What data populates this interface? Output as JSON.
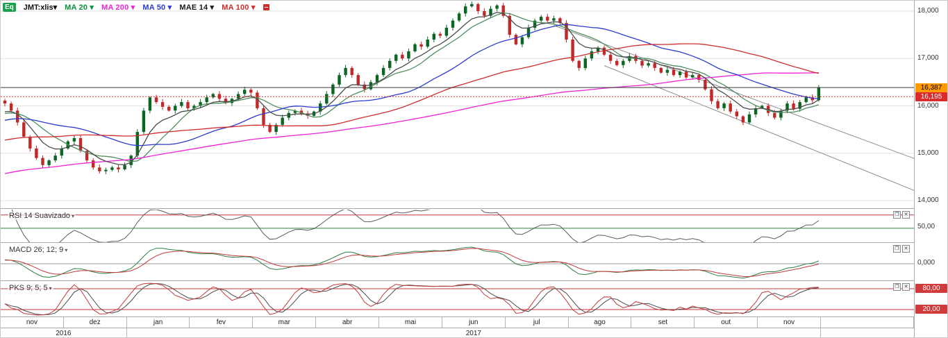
{
  "ui": {
    "caret": "▾",
    "restore_icon": "❐",
    "close_icon": "✕"
  },
  "toolbar": {
    "instrument_badge": "Eq",
    "symbol": "JMT:xlis"
  },
  "price_axis": {
    "ticks": [
      {
        "label": "18,000",
        "value": 18000
      },
      {
        "label": "17,000",
        "value": 17000
      },
      {
        "label": "16,000",
        "value": 16000
      },
      {
        "label": "15,000",
        "value": 15000
      },
      {
        "label": "14,000",
        "value": 14000
      }
    ]
  },
  "panels": {
    "rsi": {
      "title": "RSI 14 Suavizado",
      "period": 14,
      "range": [
        28,
        78
      ],
      "line_color": "#5a5a5a",
      "ref_lines": [
        {
          "value": 70,
          "color": "#c23a3a"
        },
        {
          "value": 50,
          "color": "#2e7d46"
        }
      ],
      "axis_labels": [
        {
          "label": "50,00",
          "value": 50
        }
      ]
    },
    "macd": {
      "title": "MACD 26; 12; 9",
      "slow": 26,
      "fast": 12,
      "signal": 9,
      "zero_color": "#9a9a9a",
      "macd_color": "#2e7d46",
      "signal_color": "#c23a3a",
      "axis_labels": [
        {
          "label": "0,000",
          "value": 0
        }
      ]
    },
    "pks": {
      "title": "PKS 9; 5; 5",
      "period": 9,
      "k_smooth": 5,
      "d_smooth": 5,
      "range": [
        0,
        100
      ],
      "k_color": "#c23a3a",
      "d_color": "#4a4a4a",
      "ref_lines": [
        {
          "value": 80,
          "color": "#c23a3a"
        },
        {
          "value": 20,
          "color": "#c23a3a"
        }
      ],
      "axis_labels": [
        {
          "label": "80,00",
          "value": 80,
          "bg": "#d03a3a",
          "fg": "#ffffff"
        },
        {
          "label": "20,00",
          "value": 20,
          "bg": "#d03a3a",
          "fg": "#ffffff"
        }
      ]
    }
  },
  "time_axis": {
    "months": [
      "nov",
      "dez",
      "jan",
      "fev",
      "mar",
      "abr",
      "mai",
      "jun",
      "jul",
      "ago",
      "set",
      "out",
      "nov"
    ],
    "years": [
      {
        "label": "2016",
        "months": 2
      },
      {
        "label": "2017",
        "months": 11
      }
    ]
  },
  "chart_data": {
    "type": "candlestick",
    "symbol": "JMT:xlis",
    "period_start": "nov 2016",
    "period_end": "nov 2017",
    "candles_per_month": 10,
    "ylim": [
      13840,
      18220
    ],
    "up_color": "#0b6623",
    "down_color": "#c22828",
    "last_price": 16387,
    "reference_price": 16195,
    "close": [
      16050,
      15900,
      15650,
      15350,
      15100,
      14900,
      14750,
      14850,
      14950,
      15100,
      15250,
      15320,
      15050,
      14850,
      14700,
      14620,
      14650,
      14700,
      14660,
      14750,
      14950,
      15450,
      15900,
      16180,
      16080,
      15980,
      15900,
      16000,
      16080,
      15950,
      16000,
      16080,
      16180,
      16250,
      16150,
      16060,
      16150,
      16250,
      16340,
      16280,
      15950,
      15600,
      15450,
      15600,
      15750,
      15850,
      15900,
      15840,
      15790,
      15880,
      16050,
      16250,
      16450,
      16650,
      16800,
      16650,
      16450,
      16350,
      16500,
      16650,
      16800,
      16950,
      17080,
      17000,
      17150,
      17300,
      17250,
      17400,
      17520,
      17480,
      17650,
      17800,
      17950,
      18100,
      18150,
      18000,
      17900,
      18050,
      18120,
      17900,
      17500,
      17300,
      17450,
      17650,
      17800,
      17880,
      17800,
      17850,
      17750,
      17400,
      16950,
      16800,
      17000,
      17150,
      17230,
      17080,
      16950,
      16860,
      16950,
      17050,
      16950,
      16850,
      16900,
      16800,
      16700,
      16760,
      16650,
      16720,
      16600,
      16650,
      16550,
      16350,
      16100,
      15950,
      16050,
      15880,
      15780,
      15650,
      15820,
      15950,
      16000,
      15850,
      15750,
      15900,
      16050,
      15940,
      16080,
      16180,
      16120,
      16387
    ],
    "history": {
      "start": 13100,
      "end": 15950,
      "points": 100,
      "wiggle": 150
    },
    "overlays": [
      {
        "label": "MA 20",
        "period": 20,
        "kind": "sma",
        "color": "#4f8f5f",
        "label_color": "#0a8f3c"
      },
      {
        "label": "MA 200",
        "period": 200,
        "kind": "sma",
        "color": "#f023d8",
        "label_color": "#f023d8"
      },
      {
        "label": "MA 50",
        "period": 50,
        "kind": "sma",
        "color": "#2c3bd0",
        "label_color": "#2c3bd0"
      },
      {
        "label": "MAE 14",
        "period": 14,
        "kind": "ema",
        "color": "#4a4a4a",
        "label_color": "#1a1a1a"
      },
      {
        "label": "MA 100",
        "period": 100,
        "kind": "sma",
        "color": "#d02c2c",
        "label_color": "#d02c2c"
      }
    ],
    "trendlines": [
      {
        "from": {
          "index": 87,
          "price": 17700
        },
        "to": {
          "index": 150,
          "price": 14600
        },
        "color": "#8c8c8c"
      },
      {
        "from": {
          "index": 95,
          "price": 16850
        },
        "to": {
          "index": 150,
          "price": 13900
        },
        "color": "#8c8c8c"
      }
    ],
    "price_flags": [
      {
        "label": "16,387",
        "value": 16387,
        "bg": "#ff9a00",
        "fg": "#000000",
        "line": "solid",
        "line_color": "#3a3a3a"
      },
      {
        "label": "16,195",
        "value": 16195,
        "bg": "#d92b2b",
        "fg": "#ffffff",
        "line": "dotted",
        "line_color": "#d92b2b"
      }
    ]
  }
}
